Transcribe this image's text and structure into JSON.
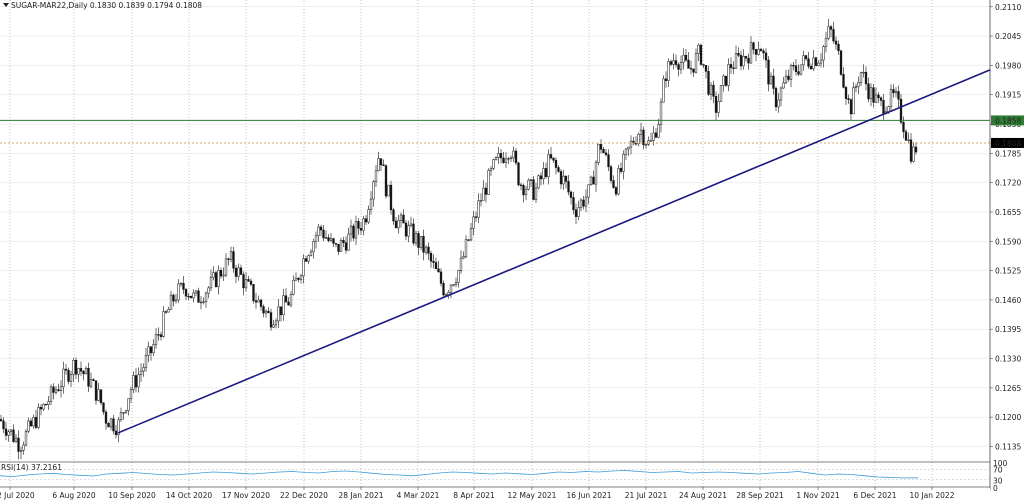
{
  "chart_data": {
    "type": "candlestick",
    "symbol": "SUGAR-MAR22",
    "timeframe": "Daily",
    "header": "SUGAR-MAR22,Daily  0.1830 0.1839 0.1794 0.1808",
    "ohlc": {
      "open": 0.183,
      "high": 0.1839,
      "low": 0.1794,
      "close": 0.1808
    },
    "ylim": [
      0.1105,
      0.2125
    ],
    "y_ticks": [
      "0.2110",
      "0.2045",
      "0.1980",
      "0.1915",
      "0.1850",
      "0.1785",
      "0.1720",
      "0.1655",
      "0.1590",
      "0.1525",
      "0.1460",
      "0.1395",
      "0.1330",
      "0.1265",
      "0.1200",
      "0.1135"
    ],
    "x_labels": [
      "2 Jul 2020",
      "6 Aug 2020",
      "10 Sep 2020",
      "14 Oct 2020",
      "17 Nov 2020",
      "22 Dec 2020",
      "28 Jan 2021",
      "4 Mar 2021",
      "8 Apr 2021",
      "12 May 2021",
      "16 Jun 2021",
      "21 Jul 2021",
      "24 Aug 2021",
      "28 Sep 2021",
      "1 Nov 2021",
      "6 Dec 2021",
      "10 Jan 2022"
    ],
    "price_path": [
      [
        0,
        0.1195
      ],
      [
        20,
        0.114
      ],
      [
        40,
        0.121
      ],
      [
        55,
        0.126
      ],
      [
        75,
        0.132
      ],
      [
        90,
        0.128
      ],
      [
        100,
        0.124
      ],
      [
        105,
        0.12
      ],
      [
        118,
        0.118
      ],
      [
        130,
        0.126
      ],
      [
        150,
        0.134
      ],
      [
        165,
        0.142
      ],
      [
        175,
        0.147
      ],
      [
        185,
        0.149
      ],
      [
        195,
        0.146
      ],
      [
        210,
        0.149
      ],
      [
        230,
        0.155
      ],
      [
        250,
        0.148
      ],
      [
        270,
        0.142
      ],
      [
        290,
        0.146
      ],
      [
        305,
        0.156
      ],
      [
        320,
        0.162
      ],
      [
        335,
        0.157
      ],
      [
        350,
        0.16
      ],
      [
        365,
        0.164
      ],
      [
        375,
        0.175
      ],
      [
        380,
        0.179
      ],
      [
        385,
        0.172
      ],
      [
        395,
        0.164
      ],
      [
        410,
        0.161
      ],
      [
        425,
        0.157
      ],
      [
        445,
        0.148
      ],
      [
        460,
        0.153
      ],
      [
        480,
        0.168
      ],
      [
        495,
        0.176
      ],
      [
        510,
        0.18
      ],
      [
        520,
        0.172
      ],
      [
        535,
        0.17
      ],
      [
        550,
        0.177
      ],
      [
        565,
        0.172
      ],
      [
        575,
        0.166
      ],
      [
        590,
        0.17
      ],
      [
        600,
        0.181
      ],
      [
        615,
        0.171
      ],
      [
        630,
        0.18
      ],
      [
        640,
        0.184
      ],
      [
        650,
        0.18
      ],
      [
        660,
        0.187
      ],
      [
        665,
        0.196
      ],
      [
        675,
        0.2
      ],
      [
        690,
        0.197
      ],
      [
        700,
        0.201
      ],
      [
        715,
        0.188
      ],
      [
        730,
        0.198
      ],
      [
        745,
        0.2
      ],
      [
        760,
        0.203
      ],
      [
        775,
        0.19
      ],
      [
        790,
        0.196
      ],
      [
        805,
        0.199
      ],
      [
        820,
        0.2
      ],
      [
        830,
        0.206
      ],
      [
        840,
        0.199
      ],
      [
        850,
        0.188
      ],
      [
        860,
        0.197
      ],
      [
        870,
        0.192
      ],
      [
        880,
        0.189
      ],
      [
        895,
        0.191
      ],
      [
        905,
        0.184
      ],
      [
        912,
        0.178
      ],
      [
        918,
        0.1808
      ]
    ],
    "trendline": {
      "start": [
        "10 Sep 2020",
        0.1165
      ],
      "end": [
        "10 Jan 2022",
        0.197
      ],
      "color": "#1a1a80"
    },
    "horizontal_levels": [
      {
        "value": 0.1858,
        "label": "0.1858",
        "color": "#2e7d32",
        "style": "solid"
      },
      {
        "value": 0.1808,
        "label": "0.1808",
        "color": "#d9a46a",
        "style": "dotted"
      }
    ],
    "rsi": {
      "label": "RSI(14) 37.2161",
      "levels": [
        "100",
        "70",
        "30",
        "0"
      ],
      "values": [
        45,
        42,
        48,
        52,
        55,
        50,
        47,
        44,
        52,
        55,
        58,
        54,
        50,
        48,
        52,
        56,
        60,
        58,
        55,
        52,
        56,
        60,
        62,
        58,
        56,
        62,
        64,
        60,
        55,
        50,
        48,
        45,
        50,
        56,
        60,
        58,
        55,
        52,
        56,
        53,
        50,
        55,
        60,
        58,
        62,
        60,
        64,
        66,
        62,
        58,
        60,
        62,
        56,
        58,
        60,
        58,
        55,
        52,
        56,
        58,
        62,
        55,
        48,
        52,
        50,
        45,
        40,
        38,
        36,
        37
      ]
    },
    "grid": true
  }
}
